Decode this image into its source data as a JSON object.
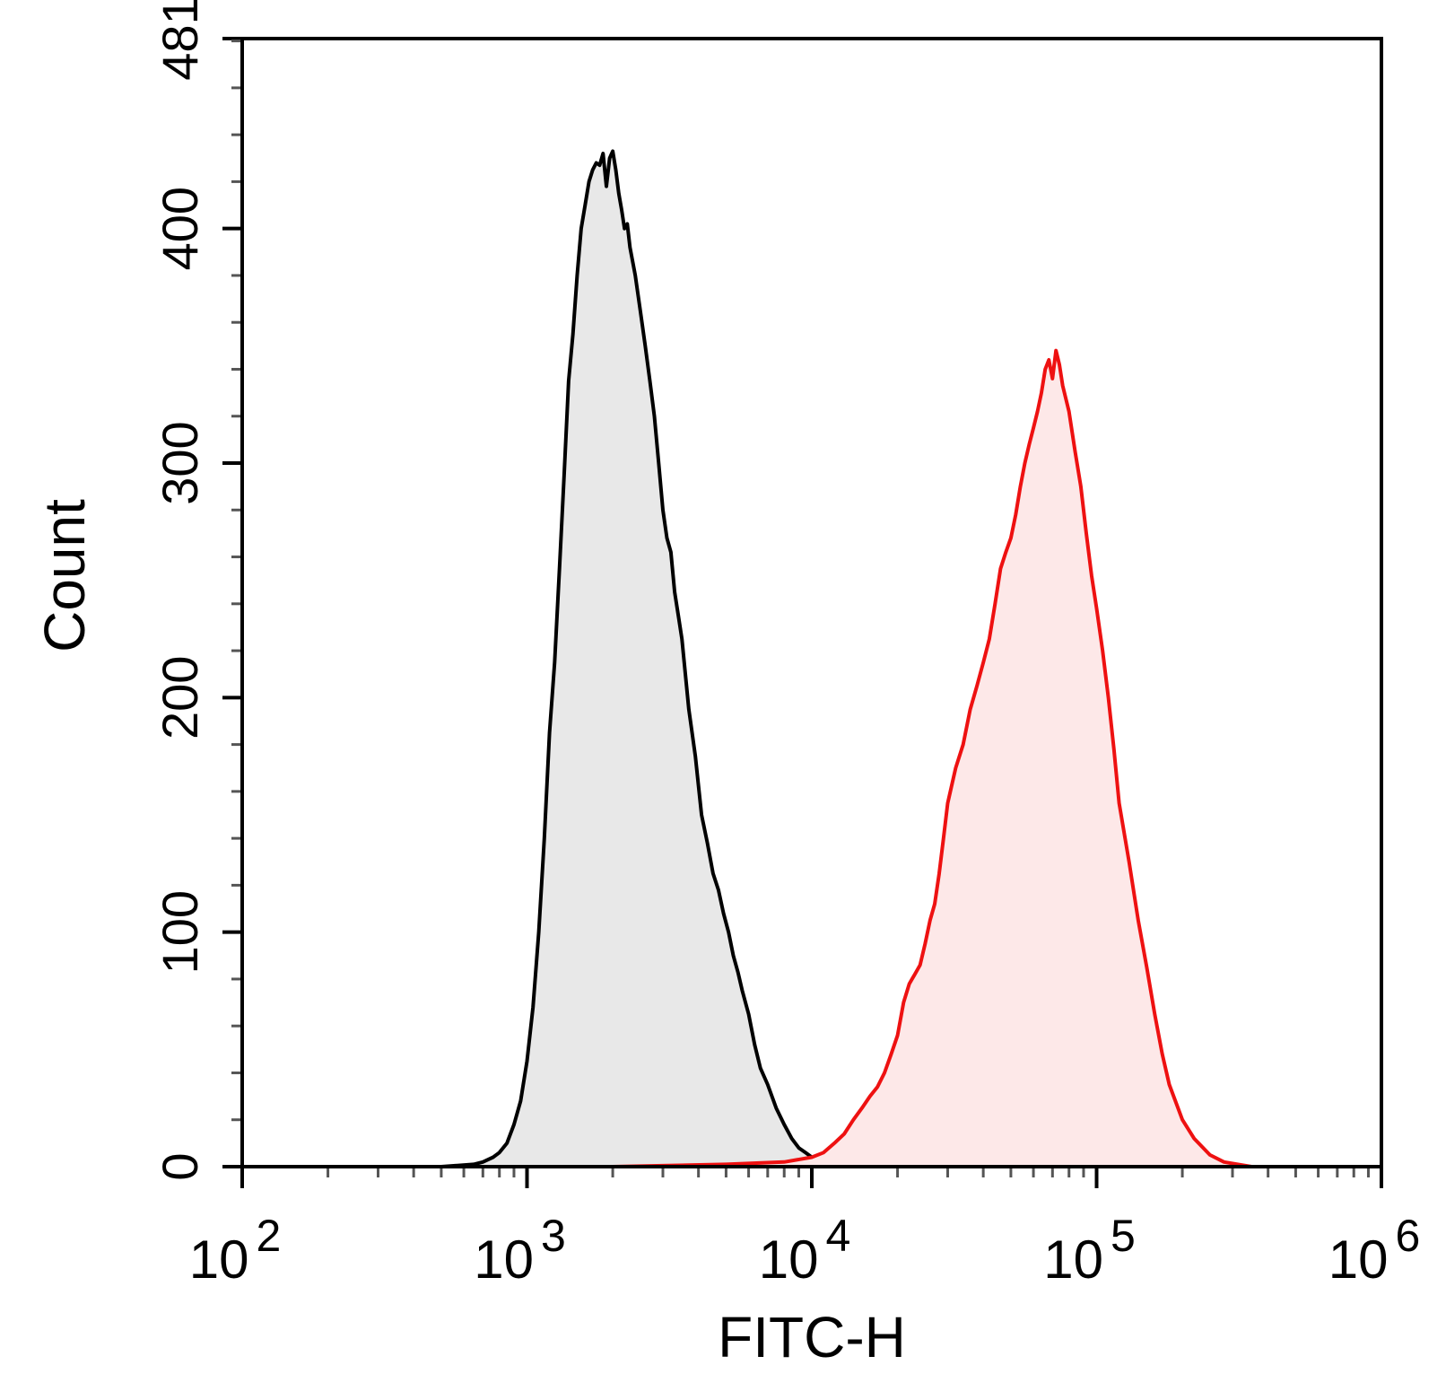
{
  "chart_data": {
    "type": "area",
    "xlabel": "FITC-H",
    "ylabel": "Count",
    "xscale": "log",
    "xlim": [
      100,
      1000000
    ],
    "ylim": [
      0,
      481
    ],
    "x_ticks": [
      {
        "value": 100,
        "base": "10",
        "exp": "2"
      },
      {
        "value": 1000,
        "base": "10",
        "exp": "3"
      },
      {
        "value": 10000,
        "base": "10",
        "exp": "4"
      },
      {
        "value": 100000,
        "base": "10",
        "exp": "5"
      },
      {
        "value": 1000000,
        "base": "10",
        "exp": "6"
      }
    ],
    "y_ticks": [
      0,
      100,
      200,
      300,
      400,
      481
    ],
    "series": [
      {
        "stroke": "#000000",
        "fill": "#e8e8e8",
        "points": [
          [
            500,
            0
          ],
          [
            650,
            1
          ],
          [
            700,
            2
          ],
          [
            760,
            4
          ],
          [
            800,
            6
          ],
          [
            850,
            10
          ],
          [
            900,
            18
          ],
          [
            950,
            28
          ],
          [
            1000,
            45
          ],
          [
            1050,
            68
          ],
          [
            1100,
            100
          ],
          [
            1150,
            140
          ],
          [
            1200,
            185
          ],
          [
            1250,
            215
          ],
          [
            1300,
            255
          ],
          [
            1350,
            295
          ],
          [
            1400,
            335
          ],
          [
            1450,
            355
          ],
          [
            1500,
            380
          ],
          [
            1550,
            400
          ],
          [
            1600,
            410
          ],
          [
            1650,
            420
          ],
          [
            1700,
            425
          ],
          [
            1750,
            428
          ],
          [
            1800,
            427
          ],
          [
            1850,
            432
          ],
          [
            1900,
            418
          ],
          [
            1950,
            430
          ],
          [
            2000,
            433
          ],
          [
            2050,
            425
          ],
          [
            2100,
            415
          ],
          [
            2150,
            408
          ],
          [
            2200,
            400
          ],
          [
            2250,
            402
          ],
          [
            2300,
            392
          ],
          [
            2400,
            380
          ],
          [
            2500,
            365
          ],
          [
            2600,
            350
          ],
          [
            2700,
            335
          ],
          [
            2800,
            320
          ],
          [
            2900,
            300
          ],
          [
            3000,
            280
          ],
          [
            3100,
            268
          ],
          [
            3200,
            262
          ],
          [
            3300,
            245
          ],
          [
            3400,
            235
          ],
          [
            3500,
            225
          ],
          [
            3700,
            195
          ],
          [
            3900,
            175
          ],
          [
            4100,
            150
          ],
          [
            4300,
            138
          ],
          [
            4500,
            125
          ],
          [
            4700,
            118
          ],
          [
            4900,
            108
          ],
          [
            5100,
            100
          ],
          [
            5300,
            90
          ],
          [
            5500,
            83
          ],
          [
            5700,
            75
          ],
          [
            6000,
            65
          ],
          [
            6300,
            52
          ],
          [
            6600,
            42
          ],
          [
            7000,
            35
          ],
          [
            7500,
            25
          ],
          [
            8000,
            18
          ],
          [
            8500,
            12
          ],
          [
            9000,
            8
          ],
          [
            9500,
            6
          ],
          [
            10000,
            4
          ],
          [
            11000,
            3
          ],
          [
            12000,
            2
          ],
          [
            13500,
            1
          ],
          [
            16000,
            1
          ],
          [
            20000,
            0
          ]
        ]
      },
      {
        "stroke": "#ee1111",
        "fill": "#fde8e8",
        "points": [
          [
            2000,
            0
          ],
          [
            5000,
            1
          ],
          [
            8000,
            2
          ],
          [
            10000,
            4
          ],
          [
            11000,
            6
          ],
          [
            12000,
            10
          ],
          [
            13000,
            14
          ],
          [
            14000,
            20
          ],
          [
            15000,
            25
          ],
          [
            16000,
            30
          ],
          [
            17000,
            34
          ],
          [
            18000,
            40
          ],
          [
            19000,
            48
          ],
          [
            20000,
            56
          ],
          [
            21000,
            70
          ],
          [
            22000,
            78
          ],
          [
            23000,
            82
          ],
          [
            24000,
            86
          ],
          [
            25000,
            95
          ],
          [
            26000,
            105
          ],
          [
            27000,
            112
          ],
          [
            28000,
            125
          ],
          [
            29000,
            140
          ],
          [
            30000,
            155
          ],
          [
            32000,
            170
          ],
          [
            34000,
            180
          ],
          [
            36000,
            195
          ],
          [
            38000,
            205
          ],
          [
            40000,
            215
          ],
          [
            42000,
            225
          ],
          [
            44000,
            240
          ],
          [
            46000,
            255
          ],
          [
            48000,
            262
          ],
          [
            50000,
            268
          ],
          [
            52000,
            278
          ],
          [
            54000,
            290
          ],
          [
            56000,
            300
          ],
          [
            58000,
            308
          ],
          [
            60000,
            315
          ],
          [
            62000,
            322
          ],
          [
            64000,
            330
          ],
          [
            66000,
            340
          ],
          [
            68000,
            344
          ],
          [
            70000,
            336
          ],
          [
            72000,
            348
          ],
          [
            74000,
            342
          ],
          [
            76000,
            333
          ],
          [
            80000,
            322
          ],
          [
            84000,
            305
          ],
          [
            88000,
            290
          ],
          [
            92000,
            270
          ],
          [
            96000,
            252
          ],
          [
            100000,
            238
          ],
          [
            105000,
            220
          ],
          [
            110000,
            200
          ],
          [
            115000,
            178
          ],
          [
            120000,
            155
          ],
          [
            130000,
            130
          ],
          [
            140000,
            105
          ],
          [
            150000,
            85
          ],
          [
            160000,
            65
          ],
          [
            170000,
            48
          ],
          [
            180000,
            35
          ],
          [
            200000,
            20
          ],
          [
            220000,
            12
          ],
          [
            250000,
            5
          ],
          [
            280000,
            2
          ],
          [
            350000,
            0
          ]
        ]
      }
    ]
  }
}
